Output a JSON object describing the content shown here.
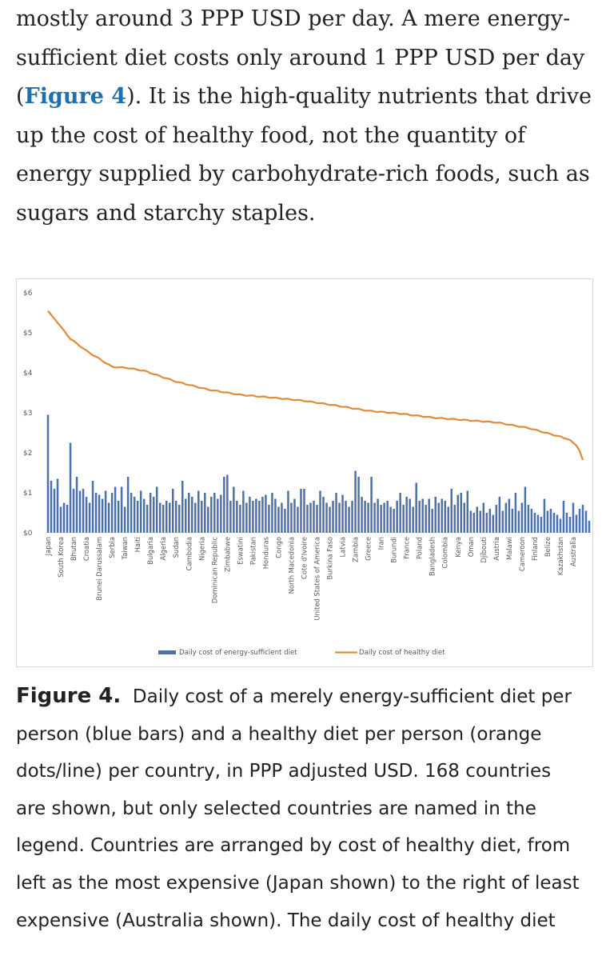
{
  "article": {
    "body_lines": [
      "mostly around 3 PPP USD per day. A mere energy-",
      "sufficient diet costs only around 1 PPP USD per day",
      "",
      "up the cost of healthy food, not the quantity of",
      "energy supplied by carbohydrate-rich foods, such as",
      "sugars and starchy staples."
    ],
    "line3_prefix": "(",
    "figure_link": "Figure 4",
    "line3_suffix": "). It is the high-quality nutrients that drive"
  },
  "figure": {
    "caption_label": "Figure 4.",
    "caption_first_line": "Daily cost of a merely energy-sufficient diet per",
    "caption_lines": [
      "person (blue bars) and a healthy diet per person (orange",
      "dots/line) per country, in PPP adjusted USD. 168 countries",
      "are shown, but only selected countries are named in the",
      "legend. Countries are arranged by cost of healthy diet, from",
      "left as the most expensive (Japan shown) to the right of least",
      "expensive (Australia shown). The daily cost of healthy diet"
    ]
  },
  "chart_data": {
    "type": "bar",
    "title": "",
    "xlabel": "",
    "ylabel": "",
    "ylim": [
      0,
      6
    ],
    "yticks": [
      "$0",
      "$1",
      "$2",
      "$3",
      "$4",
      "$5",
      "$6"
    ],
    "n_countries": 168,
    "series": [
      {
        "name": "Daily cost of energy-sufficient diet",
        "type": "bar",
        "color": "#4a6fb5",
        "values": [
          2.95,
          1.3,
          1.1,
          1.35,
          0.65,
          0.75,
          0.7,
          2.25,
          1.1,
          1.4,
          1.05,
          1.1,
          0.9,
          0.75,
          1.3,
          1.0,
          0.95,
          0.85,
          1.05,
          0.75,
          1.0,
          1.15,
          0.8,
          1.15,
          0.65,
          1.4,
          1.0,
          0.9,
          0.8,
          1.05,
          0.85,
          0.7,
          1.0,
          0.9,
          1.15,
          0.75,
          0.7,
          0.8,
          0.75,
          1.1,
          0.8,
          0.7,
          1.3,
          0.85,
          1.0,
          0.9,
          0.75,
          1.05,
          0.8,
          1.0,
          0.65,
          0.9,
          1.0,
          0.85,
          0.95,
          1.4,
          1.45,
          0.8,
          1.15,
          0.8,
          0.7,
          1.05,
          0.75,
          0.9,
          0.8,
          0.85,
          0.8,
          0.9,
          0.95,
          0.7,
          1.0,
          0.85,
          0.65,
          0.75,
          0.6,
          1.05,
          0.75,
          0.85,
          0.65,
          1.1,
          1.1,
          0.7,
          0.75,
          0.8,
          0.7,
          1.05,
          0.9,
          0.75,
          0.65,
          0.8,
          1.0,
          0.75,
          0.95,
          0.8,
          0.65,
          0.8,
          1.55,
          1.4,
          0.9,
          0.8,
          0.75,
          1.4,
          0.75,
          0.85,
          0.7,
          0.75,
          0.8,
          0.65,
          0.6,
          0.8,
          1.0,
          0.7,
          0.9,
          0.85,
          0.65,
          1.25,
          0.8,
          0.85,
          0.7,
          0.85,
          0.6,
          0.9,
          0.75,
          0.85,
          0.8,
          0.65,
          1.1,
          0.7,
          0.95,
          1.0,
          0.75,
          1.05,
          0.55,
          0.5,
          0.65,
          0.55,
          0.75,
          0.5,
          0.6,
          0.45,
          0.7,
          0.9,
          0.55,
          0.75,
          0.85,
          0.6,
          1.0,
          0.55,
          0.75,
          1.15,
          0.7,
          0.6,
          0.5,
          0.45,
          0.4,
          0.85,
          0.55,
          0.6,
          0.5,
          0.45,
          0.35,
          0.8,
          0.5,
          0.4,
          0.75,
          0.45,
          0.6,
          0.7,
          0.55,
          0.3
        ],
        "_note": "168 values estimated from bar heights"
      },
      {
        "name": "Daily cost of healthy diet",
        "type": "line",
        "color": "#e08a3c",
        "x": [
          0,
          3,
          7,
          12,
          16,
          20,
          25,
          30,
          40,
          50,
          60,
          70,
          80,
          90,
          100,
          110,
          120,
          130,
          140,
          150,
          160,
          163,
          164,
          165,
          166,
          167
        ],
        "values": [
          5.55,
          5.25,
          4.85,
          4.55,
          4.35,
          4.15,
          4.12,
          4.05,
          3.78,
          3.58,
          3.45,
          3.38,
          3.3,
          3.18,
          3.05,
          2.98,
          2.88,
          2.82,
          2.76,
          2.62,
          2.4,
          2.32,
          2.25,
          2.18,
          2.05,
          1.82
        ],
        "_note": "curve anchor points (country index, value)"
      }
    ],
    "labeled_countries": [
      {
        "index": 0,
        "name": "Japan"
      },
      {
        "index": 4,
        "name": "South Korea"
      },
      {
        "index": 8,
        "name": "Bhutan"
      },
      {
        "index": 12,
        "name": "Croatia"
      },
      {
        "index": 16,
        "name": "Brunei Darussalam"
      },
      {
        "index": 20,
        "name": "Serbia"
      },
      {
        "index": 24,
        "name": "Taiwan"
      },
      {
        "index": 28,
        "name": "Haiti"
      },
      {
        "index": 32,
        "name": "Bulgaria"
      },
      {
        "index": 36,
        "name": "Algeria"
      },
      {
        "index": 40,
        "name": "Sudan"
      },
      {
        "index": 44,
        "name": "Cambodia"
      },
      {
        "index": 48,
        "name": "Nigeria"
      },
      {
        "index": 52,
        "name": "Dominican Republic"
      },
      {
        "index": 56,
        "name": "Zimbabwe"
      },
      {
        "index": 60,
        "name": "Eswatini"
      },
      {
        "index": 64,
        "name": "Pakistan"
      },
      {
        "index": 68,
        "name": "Honduras"
      },
      {
        "index": 72,
        "name": "Congo"
      },
      {
        "index": 76,
        "name": "North Macedonia"
      },
      {
        "index": 80,
        "name": "Cote d'Ivoire"
      },
      {
        "index": 84,
        "name": "United States of America"
      },
      {
        "index": 88,
        "name": "Burkina Faso"
      },
      {
        "index": 92,
        "name": "Latvia"
      },
      {
        "index": 96,
        "name": "Zambia"
      },
      {
        "index": 100,
        "name": "Greece"
      },
      {
        "index": 104,
        "name": "Iran"
      },
      {
        "index": 108,
        "name": "Burundi"
      },
      {
        "index": 112,
        "name": "France"
      },
      {
        "index": 116,
        "name": "Poland"
      },
      {
        "index": 120,
        "name": "Bangladesh"
      },
      {
        "index": 124,
        "name": "Colombia"
      },
      {
        "index": 128,
        "name": "Kenya"
      },
      {
        "index": 132,
        "name": "Oman"
      },
      {
        "index": 136,
        "name": "Djibouti"
      },
      {
        "index": 140,
        "name": "Austria"
      },
      {
        "index": 144,
        "name": "Malawi"
      },
      {
        "index": 148,
        "name": "Cameroon"
      },
      {
        "index": 152,
        "name": "Finland"
      },
      {
        "index": 156,
        "name": "Belize"
      },
      {
        "index": 160,
        "name": "Kazakhstan"
      },
      {
        "index": 164,
        "name": "Australia"
      }
    ],
    "legend": {
      "position": "bottom-center",
      "entries": [
        "Daily cost of energy-sufficient diet",
        "Daily cost of healthy diet"
      ]
    },
    "grid": false
  }
}
